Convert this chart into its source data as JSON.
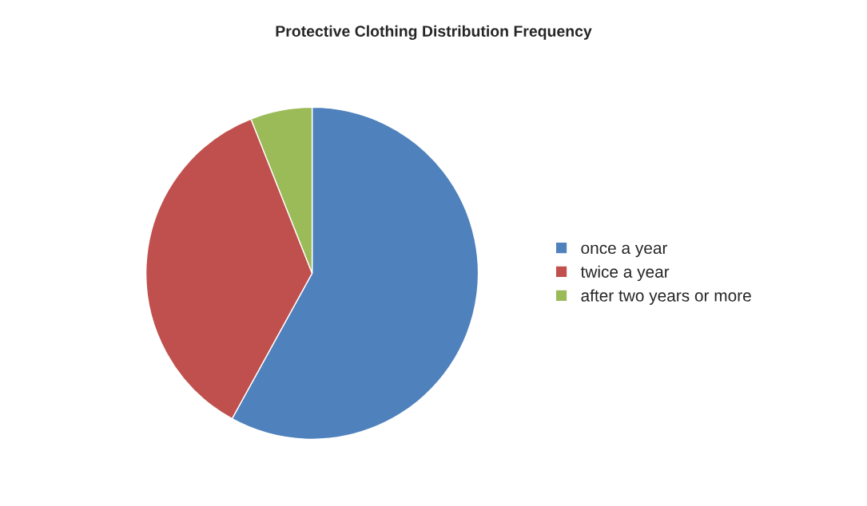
{
  "chart_data": {
    "type": "pie",
    "title": "Protective Clothing Distribution Frequency",
    "categories": [
      "once a year",
      "twice a year",
      "after two years or more"
    ],
    "values": [
      58,
      36,
      6
    ],
    "colors": [
      "#4f81bd",
      "#c0504d",
      "#9bbb59"
    ],
    "legend": "right"
  }
}
